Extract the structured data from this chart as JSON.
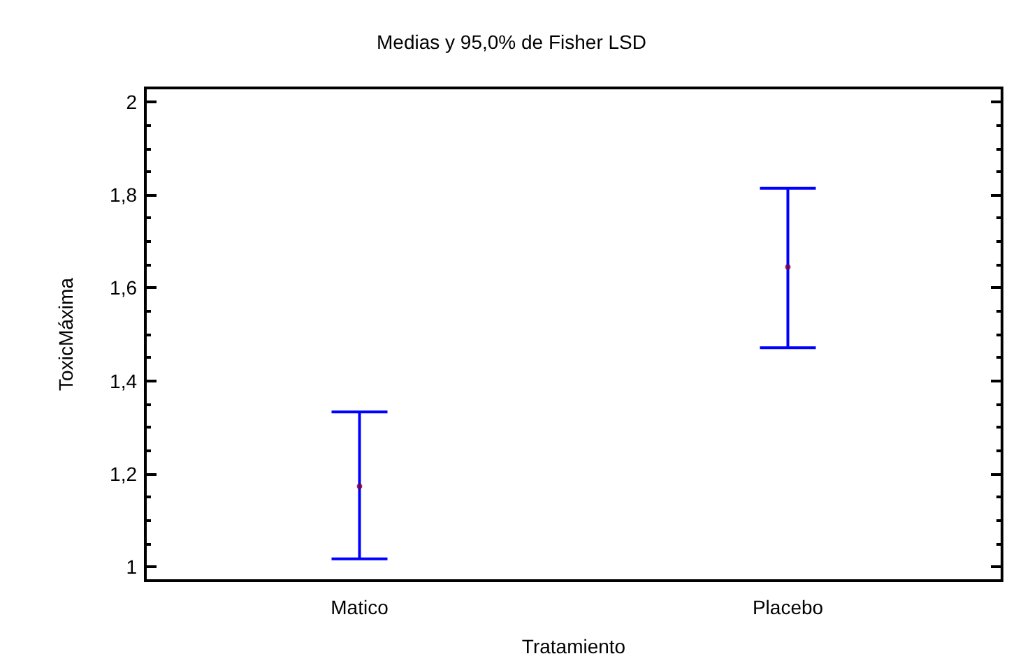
{
  "chart_data": {
    "type": "scatter",
    "title": "Medias y 95,0% de Fisher LSD",
    "xlabel": "Tratamiento",
    "ylabel": "ToxicMáxima",
    "categories": [
      "Matico",
      "Placebo"
    ],
    "series": [
      {
        "color": "#800040",
        "values": [
          1.173,
          1.645
        ],
        "errors": [
          [
            1.017,
            1.333
          ],
          [
            1.471,
            1.814
          ]
        ]
      }
    ],
    "marker": "circle",
    "ylim": [
      0.97,
      2.03
    ],
    "yticks": [
      {
        "value": 1,
        "label": "1"
      },
      {
        "value": 1.05,
        "label": null
      },
      {
        "value": 1.1,
        "label": null
      },
      {
        "value": 1.15,
        "label": null
      },
      {
        "value": 1.2,
        "label": "1,2"
      },
      {
        "value": 1.25,
        "label": null
      },
      {
        "value": 1.3,
        "label": null
      },
      {
        "value": 1.35,
        "label": null
      },
      {
        "value": 1.4,
        "label": "1,4"
      },
      {
        "value": 1.45,
        "label": null
      },
      {
        "value": 1.5,
        "label": null
      },
      {
        "value": 1.55,
        "label": null
      },
      {
        "value": 1.6,
        "label": "1,6"
      },
      {
        "value": 1.65,
        "label": null
      },
      {
        "value": 1.7,
        "label": null
      },
      {
        "value": 1.75,
        "label": null
      },
      {
        "value": 1.8,
        "label": "1,8"
      },
      {
        "value": 1.85,
        "label": null
      },
      {
        "value": 1.9,
        "label": null
      },
      {
        "value": 1.95,
        "label": null
      },
      {
        "value": 2,
        "label": "2"
      }
    ],
    "grid": false
  }
}
